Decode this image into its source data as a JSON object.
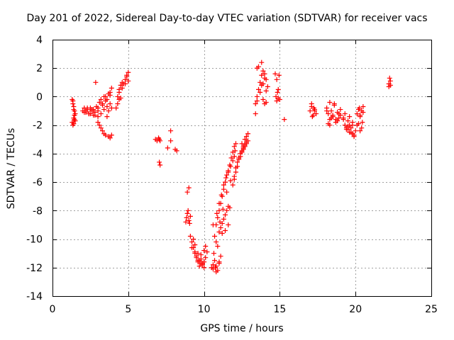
{
  "chart_data": {
    "type": "scatter",
    "title": "Day 201 of 2022, Sidereal Day-to-day VTEC variation (SDTVAR) for receiver vacs",
    "xlabel": "GPS time / hours",
    "ylabel": "SDTVAR / TECUs",
    "xlim": [
      0,
      25
    ],
    "ylim": [
      -14,
      4
    ],
    "xticks": [
      0,
      5,
      10,
      15,
      20,
      25
    ],
    "yticks": [
      4,
      2,
      0,
      -2,
      -4,
      -6,
      -8,
      -10,
      -12,
      -14
    ],
    "grid": true,
    "marker": "+",
    "color": "#ff0000",
    "series": [
      {
        "name": "SDTVAR",
        "x": [
          1.3,
          1.35,
          1.4,
          1.45,
          1.5,
          1.35,
          1.4,
          1.45,
          1.3,
          1.4,
          1.5,
          1.35,
          1.45,
          1.4,
          2.0,
          2.1,
          2.2,
          2.3,
          2.4,
          2.5,
          2.6,
          2.7,
          2.8,
          2.9,
          3.0,
          2.2,
          2.4,
          2.6,
          2.8,
          3.0,
          2.85,
          2.1,
          2.3,
          2.5,
          2.7,
          3.0,
          3.1,
          3.2,
          3.3,
          3.4,
          3.5,
          3.6,
          3.7,
          3.8,
          3.9,
          3.2,
          3.4,
          3.6,
          3.8,
          3.9,
          3.5,
          3.7,
          3.3,
          3.6,
          3.8,
          3.0,
          3.1,
          3.2,
          3.3,
          3.4,
          3.5,
          3.7,
          3.8,
          3.9,
          4.3,
          4.4,
          4.5,
          4.6,
          4.7,
          4.8,
          4.9,
          5.0,
          4.4,
          4.6,
          4.8,
          5.0,
          4.5,
          4.9,
          4.2,
          4.3,
          4.4,
          6.8,
          6.9,
          7.0,
          7.05,
          7.1,
          7.05,
          7.1,
          7.6,
          7.8,
          7.8,
          8.1,
          8.2,
          8.8,
          8.85,
          8.9,
          8.95,
          9.0,
          9.05,
          9.1,
          8.9,
          9.0,
          9.1,
          9.2,
          9.3,
          9.4,
          9.5,
          9.6,
          9.7,
          9.8,
          9.9,
          10.0,
          10.1,
          10.2,
          9.3,
          9.5,
          9.7,
          9.9,
          10.1,
          9.4,
          9.6,
          9.8,
          10.0,
          9.2,
          9.4,
          9.6,
          9.8,
          10.0,
          10.5,
          10.6,
          10.7,
          10.8,
          10.9,
          11.0,
          10.6,
          10.8,
          11.0,
          10.7,
          10.9,
          11.1,
          10.6,
          10.8,
          10.65,
          10.75,
          10.8,
          10.9,
          11.0,
          11.1,
          11.2,
          11.3,
          11.4,
          11.5,
          11.6,
          11.7,
          11.8,
          11.9,
          12.0,
          12.1,
          10.85,
          11.0,
          11.15,
          11.3,
          11.45,
          11.6,
          11.75,
          11.9,
          12.05,
          11.05,
          11.25,
          11.5,
          11.75,
          12.0,
          11.0,
          11.1,
          11.2,
          11.3,
          11.4,
          11.5,
          11.6,
          11.7,
          11.2,
          11.4,
          11.6,
          11.9,
          12.0,
          12.1,
          12.2,
          12.3,
          12.4,
          12.5,
          12.6,
          12.7,
          12.8,
          12.9,
          12.0,
          12.2,
          12.4,
          12.6,
          12.8,
          12.1,
          12.3,
          12.5,
          12.7,
          12.5,
          12.7,
          12.9,
          12.6,
          12.8,
          13.4,
          13.5,
          13.6,
          13.7,
          13.8,
          13.9,
          14.0,
          14.1,
          14.2,
          13.5,
          13.7,
          13.9,
          14.1,
          13.6,
          13.8,
          14.0,
          13.4,
          13.5,
          13.9,
          14.1,
          13.8,
          14.0,
          14.7,
          14.8,
          14.9,
          15.0,
          14.75,
          14.85,
          14.95,
          14.8,
          14.9,
          15.3,
          17.0,
          17.1,
          17.2,
          17.3,
          17.4,
          17.1,
          17.3,
          17.15,
          17.25,
          18.1,
          18.2,
          18.3,
          18.4,
          18.5,
          18.6,
          18.7,
          18.8,
          18.9,
          19.0,
          18.2,
          18.4,
          18.6,
          18.8,
          19.0,
          18.3,
          18.5,
          18.7,
          18.1,
          18.3,
          18.9,
          19.2,
          19.3,
          19.4,
          19.5,
          19.6,
          19.7,
          19.8,
          19.9,
          20.0,
          19.3,
          19.5,
          19.7,
          19.9,
          19.4,
          19.6,
          19.8,
          19.2,
          19.5,
          19.8,
          19.6,
          20.1,
          20.2,
          20.3,
          20.4,
          20.5,
          20.2,
          20.4,
          20.1,
          20.3,
          20.45,
          20.3,
          20.5,
          20.25,
          22.2,
          22.25,
          22.3,
          22.2,
          22.3
        ],
        "y": [
          -0.2,
          -0.5,
          -0.9,
          -1.3,
          -1.7,
          -2.0,
          -1.5,
          -1.0,
          -1.8,
          -0.7,
          -1.2,
          -0.3,
          -1.6,
          -1.9,
          -1.0,
          -0.8,
          -1.1,
          -0.9,
          -1.2,
          -0.8,
          -1.0,
          -1.3,
          -1.1,
          -0.7,
          -1.4,
          -1.0,
          -1.2,
          -0.9,
          -1.3,
          -1.0,
          1.0,
          -1.1,
          -0.8,
          -1.2,
          -0.9,
          -0.8,
          -0.4,
          -0.2,
          -0.5,
          0.0,
          -0.3,
          -0.7,
          -1.0,
          -0.5,
          -0.8,
          -1.2,
          -0.9,
          -1.4,
          0.3,
          0.6,
          0.0,
          0.2,
          -0.6,
          -0.2,
          0.1,
          -1.8,
          -2.0,
          -2.2,
          -2.4,
          -2.6,
          -2.7,
          -2.8,
          -2.9,
          -2.7,
          0.0,
          0.5,
          0.8,
          1.0,
          0.9,
          1.2,
          1.4,
          1.1,
          0.3,
          0.6,
          0.9,
          1.7,
          -0.1,
          1.5,
          -0.8,
          -0.5,
          -0.2,
          -3.0,
          -3.1,
          -2.9,
          -3.0,
          -3.1,
          -4.6,
          -4.8,
          -3.6,
          -2.4,
          -3.1,
          -3.7,
          -3.8,
          -8.8,
          -8.5,
          -8.2,
          -8.0,
          -8.7,
          -8.9,
          -8.4,
          -6.7,
          -6.4,
          -9.8,
          -10.2,
          -10.6,
          -11.0,
          -11.3,
          -11.6,
          -11.5,
          -11.7,
          -11.8,
          -11.6,
          -11.3,
          -10.9,
          -10.0,
          -11.2,
          -11.9,
          -11.7,
          -10.5,
          -10.4,
          -11.0,
          -11.4,
          -12.0,
          -10.6,
          -10.9,
          -11.5,
          -11.1,
          -10.8,
          -12.0,
          -11.8,
          -11.5,
          -11.9,
          -12.2,
          -11.7,
          -12.1,
          -12.3,
          -11.6,
          -9.8,
          -10.5,
          -11.2,
          -9.0,
          -10.2,
          -11.0,
          -12.0,
          -9.0,
          -8.5,
          -8.0,
          -7.5,
          -7.0,
          -6.5,
          -6.0,
          -5.5,
          -5.2,
          -4.8,
          -4.3,
          -3.9,
          -3.5,
          -3.3,
          -8.2,
          -7.5,
          -6.9,
          -6.2,
          -5.7,
          -5.3,
          -4.9,
          -4.5,
          -3.8,
          -8.8,
          -7.9,
          -6.7,
          -5.9,
          -4.2,
          -9.5,
          -9.2,
          -8.9,
          -8.6,
          -8.3,
          -8.0,
          -7.7,
          -7.8,
          -9.6,
          -9.4,
          -9.0,
          -6.2,
          -5.6,
          -5.0,
          -4.6,
          -4.3,
          -4.0,
          -3.8,
          -3.6,
          -3.4,
          -3.2,
          -3.1,
          -5.8,
          -4.9,
          -4.2,
          -3.7,
          -3.3,
          -5.3,
          -4.4,
          -3.9,
          -3.5,
          -3.3,
          -3.0,
          -2.6,
          -3.5,
          -2.8,
          -0.5,
          0.0,
          0.5,
          1.0,
          1.5,
          1.8,
          1.6,
          1.2,
          0.7,
          -0.3,
          0.3,
          0.9,
          0.4,
          2.1,
          2.4,
          -0.5,
          -1.2,
          2.0,
          -0.2,
          -0.4,
          0.8,
          1.3,
          1.6,
          1.2,
          0.5,
          -0.2,
          0.0,
          0.3,
          1.5,
          -0.3,
          -0.1,
          -1.6,
          -1.0,
          -0.7,
          -1.3,
          -0.9,
          -1.2,
          -0.5,
          -1.0,
          -1.4,
          -0.8,
          -0.8,
          -1.2,
          -1.6,
          -1.0,
          -1.4,
          -0.5,
          -1.8,
          -1.1,
          -1.5,
          -1.3,
          -1.9,
          -1.5,
          -0.6,
          -1.7,
          -0.9,
          -0.4,
          -1.3,
          -1.6,
          -1.0,
          -2.0,
          -1.2,
          -1.5,
          -2.0,
          -2.3,
          -2.1,
          -2.5,
          -2.2,
          -2.6,
          -2.7,
          -2.4,
          -1.2,
          -1.7,
          -2.5,
          -2.8,
          -2.2,
          -2.0,
          -1.8,
          -1.6,
          -2.3,
          -2.0,
          -1.4,
          -1.2,
          -0.9,
          -1.4,
          -1.0,
          -0.7,
          -1.9,
          -2.2,
          -2.0,
          -2.4,
          -1.8,
          -1.3,
          -1.1,
          -0.8,
          0.9,
          1.3,
          1.1,
          0.7,
          0.8
        ]
      }
    ]
  }
}
